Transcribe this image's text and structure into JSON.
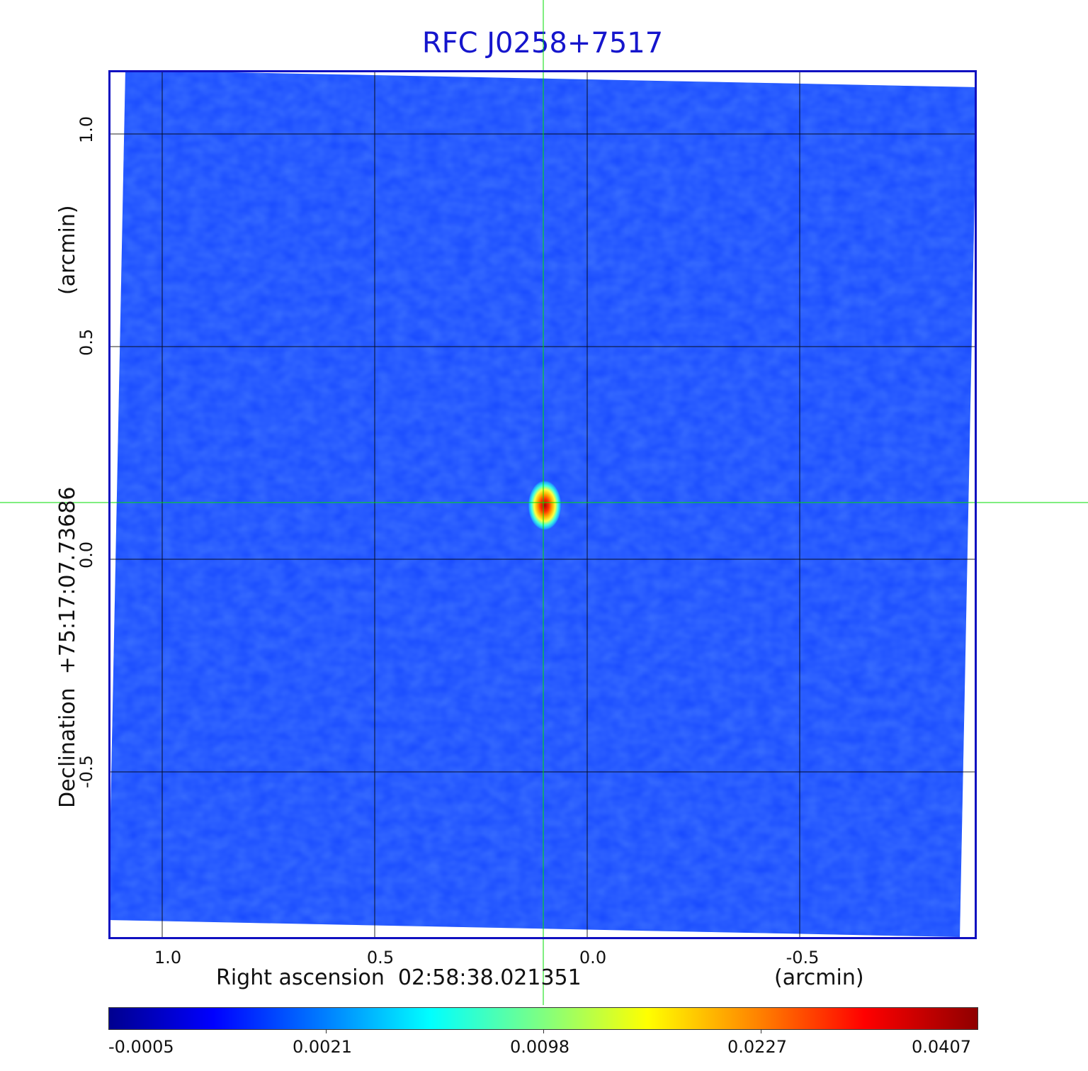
{
  "title": "RFC J0258+7517",
  "x_axis": {
    "label": "Right ascension  02:58:38.021351",
    "unit": "(arcmin)",
    "ticks": [
      "1.0",
      "0.5",
      "0.0",
      "-0.5"
    ]
  },
  "y_axis": {
    "label": "Declination  +75:17:07.73686",
    "unit": "(arcmin)",
    "ticks": [
      "1.0",
      "0.5",
      "0.0",
      "-0.5"
    ]
  },
  "colorbar": {
    "colormap": "jet",
    "ticks": [
      "-0.0005",
      "0.0021",
      "0.0098",
      "0.0227",
      "0.0407"
    ]
  },
  "colors": {
    "title": "#1515cc",
    "frame": "#1010c0",
    "crosshair": "#00dd00",
    "grid": "#000000"
  }
}
